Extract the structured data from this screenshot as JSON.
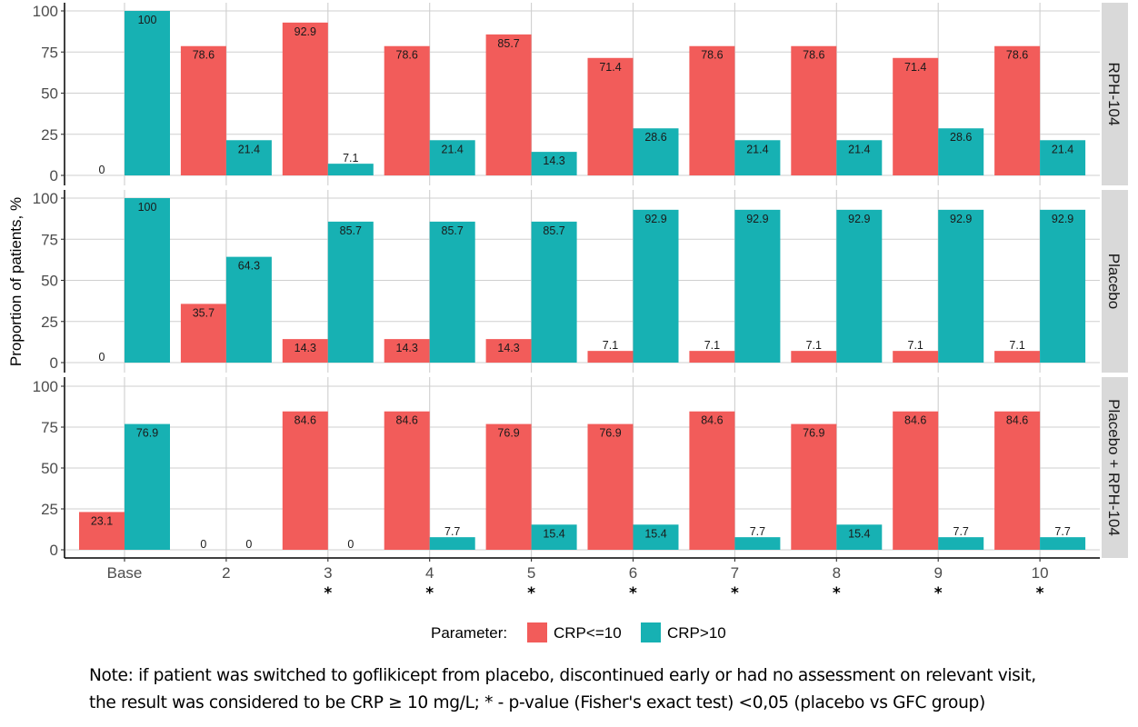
{
  "chart_data": {
    "type": "bar",
    "layout": "faceted grouped bar (facet rows)",
    "ylabel": "Proportion of patients, %",
    "xlabel": "",
    "ylim": [
      0,
      100
    ],
    "yticks": [
      0,
      25,
      50,
      75,
      100
    ],
    "grid": true,
    "categories": [
      "Base",
      "2",
      "3",
      "4",
      "5",
      "6",
      "7",
      "8",
      "9",
      "10"
    ],
    "significance_markers": [
      "",
      "",
      "*",
      "*",
      "*",
      "*",
      "*",
      "*",
      "*",
      "*"
    ],
    "legend": {
      "title": "Parameter:",
      "position": "bottom",
      "entries": [
        {
          "name": "CRP<=10",
          "color": "#F25C5A"
        },
        {
          "name": "CRP>10",
          "color": "#17B1B3"
        }
      ]
    },
    "facets": [
      {
        "label": "RPH-104",
        "series": [
          {
            "name": "CRP<=10",
            "values": [
              0,
              78.6,
              92.9,
              78.6,
              85.7,
              71.4,
              78.6,
              78.6,
              71.4,
              78.6
            ]
          },
          {
            "name": "CRP>10",
            "values": [
              100,
              21.4,
              7.1,
              21.4,
              14.3,
              28.6,
              21.4,
              21.4,
              28.6,
              21.4
            ]
          }
        ]
      },
      {
        "label": "Placebo",
        "series": [
          {
            "name": "CRP<=10",
            "values": [
              0,
              35.7,
              14.3,
              14.3,
              14.3,
              7.1,
              7.1,
              7.1,
              7.1,
              7.1
            ]
          },
          {
            "name": "CRP>10",
            "values": [
              100,
              64.3,
              85.7,
              85.7,
              85.7,
              92.9,
              92.9,
              92.9,
              92.9,
              92.9
            ]
          }
        ]
      },
      {
        "label": "Placebo + RPH-104",
        "series": [
          {
            "name": "CRP<=10",
            "values": [
              23.1,
              0,
              84.6,
              84.6,
              76.9,
              76.9,
              84.6,
              76.9,
              84.6,
              84.6
            ]
          },
          {
            "name": "CRP>10",
            "values": [
              76.9,
              0,
              0,
              7.7,
              15.4,
              15.4,
              7.7,
              15.4,
              7.7,
              7.7
            ]
          }
        ]
      }
    ]
  },
  "note": {
    "line1": "Note: if patient was switched to goflikicept from placebo, discontinued early or had no assessment on relevant visit,",
    "line2": "the result was considered to be CRP ≥ 10 mg/L; * - p-value (Fisher's exact test) <0,05 (placebo vs GFC group)"
  }
}
